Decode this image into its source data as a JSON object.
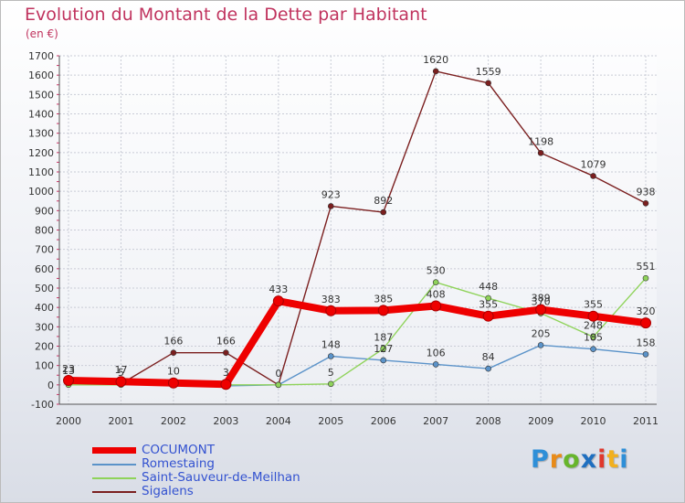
{
  "chart_data": {
    "type": "line",
    "title": "Evolution du Montant de la Dette par Habitant",
    "subtitle": "(en €)",
    "x": [
      "2000",
      "2001",
      "2002",
      "2003",
      "2004",
      "2005",
      "2006",
      "2007",
      "2008",
      "2009",
      "2010",
      "2011"
    ],
    "ylim": [
      -100,
      1700
    ],
    "yticks": [
      -100,
      0,
      100,
      200,
      300,
      400,
      500,
      600,
      700,
      800,
      900,
      1000,
      1100,
      1200,
      1300,
      1400,
      1500,
      1600,
      1700
    ],
    "grid": true,
    "legend_position": "bottom-left",
    "series": [
      {
        "name": "COCUMONT",
        "color": "#ee0000",
        "emphasis": true,
        "values": [
          23,
          17,
          10,
          3,
          433,
          383,
          385,
          408,
          355,
          389,
          355,
          320
        ],
        "labels": [
          "23",
          "17",
          "10",
          "3",
          "433",
          "383",
          "385",
          "408",
          "355",
          "389",
          "355",
          "320"
        ]
      },
      {
        "name": "Romestaing",
        "color": "#5b93c9",
        "values": [
          8,
          5,
          0,
          -5,
          0,
          148,
          127,
          106,
          84,
          205,
          185,
          158
        ],
        "labels": [
          "",
          "",
          "",
          "",
          "",
          "148",
          "127",
          "106",
          "84",
          "205",
          "185",
          "158"
        ]
      },
      {
        "name": "Saint-Sauveur-de-Meilhan",
        "color": "#8fd35a",
        "values": [
          0,
          0,
          0,
          0,
          0,
          5,
          187,
          530,
          448,
          370,
          248,
          551
        ],
        "labels": [
          "",
          "",
          "",
          "",
          "",
          "5",
          "187",
          "530",
          "448",
          "370",
          "248",
          "551"
        ]
      },
      {
        "name": "Sigalens",
        "color": "#7b1f1f",
        "values": [
          13,
          5,
          166,
          166,
          0,
          923,
          892,
          1620,
          1559,
          1198,
          1079,
          938
        ],
        "labels": [
          "13",
          "5",
          "166",
          "166",
          "0",
          "923",
          "892",
          "1620",
          "1559",
          "1198",
          "1079",
          "938"
        ]
      }
    ]
  },
  "logo": {
    "text": "Proxiti",
    "letter_colors": [
      "#2e8fd8",
      "#e88b1a",
      "#67b52c",
      "#1f6fc0",
      "#e0382c",
      "#f2b01e",
      "#2e8fd8"
    ]
  }
}
